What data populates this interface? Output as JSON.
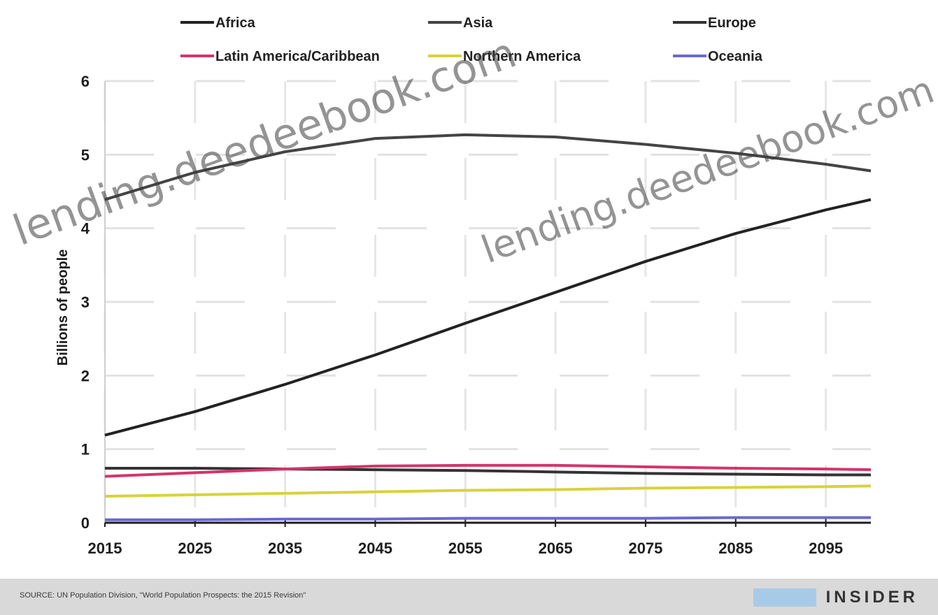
{
  "chart_data": {
    "type": "line",
    "title": "",
    "xlabel": "",
    "ylabel": "Billions of people",
    "xlim": [
      2015,
      2100
    ],
    "ylim": [
      0,
      6
    ],
    "x_ticks": [
      2015,
      2025,
      2035,
      2045,
      2055,
      2065,
      2075,
      2085,
      2095
    ],
    "y_ticks": [
      0,
      1,
      2,
      3,
      4,
      5,
      6
    ],
    "grid": true,
    "legend_position": "top",
    "x": [
      2015,
      2025,
      2035,
      2045,
      2055,
      2065,
      2075,
      2085,
      2095,
      2100
    ],
    "series": [
      {
        "name": "Africa",
        "color": "#222222",
        "values": [
          1.19,
          1.51,
          1.88,
          2.28,
          2.71,
          3.13,
          3.55,
          3.93,
          4.25,
          4.39
        ]
      },
      {
        "name": "Asia",
        "color": "#444444",
        "values": [
          4.39,
          4.76,
          5.04,
          5.22,
          5.27,
          5.24,
          5.14,
          5.02,
          4.87,
          4.78
        ]
      },
      {
        "name": "Europe",
        "color": "#333333",
        "values": [
          0.74,
          0.74,
          0.73,
          0.72,
          0.71,
          0.69,
          0.67,
          0.66,
          0.65,
          0.65
        ]
      },
      {
        "name": "Latin America/Caribbean",
        "color": "#d6336c",
        "values": [
          0.63,
          0.68,
          0.73,
          0.77,
          0.78,
          0.78,
          0.76,
          0.74,
          0.73,
          0.72
        ]
      },
      {
        "name": "Northern America",
        "color": "#d8d23a",
        "values": [
          0.36,
          0.38,
          0.4,
          0.42,
          0.44,
          0.45,
          0.47,
          0.48,
          0.49,
          0.5
        ]
      },
      {
        "name": "Oceania",
        "color": "#6a6ad0",
        "values": [
          0.04,
          0.04,
          0.05,
          0.05,
          0.06,
          0.06,
          0.06,
          0.07,
          0.07,
          0.07
        ]
      }
    ]
  },
  "footer": {
    "source": "SOURCE: UN Population Division, \"World Population Prospects: the 2015 Revision\"",
    "brand": "INSIDER"
  },
  "watermark": {
    "text": "lending.deedeebook.com"
  }
}
